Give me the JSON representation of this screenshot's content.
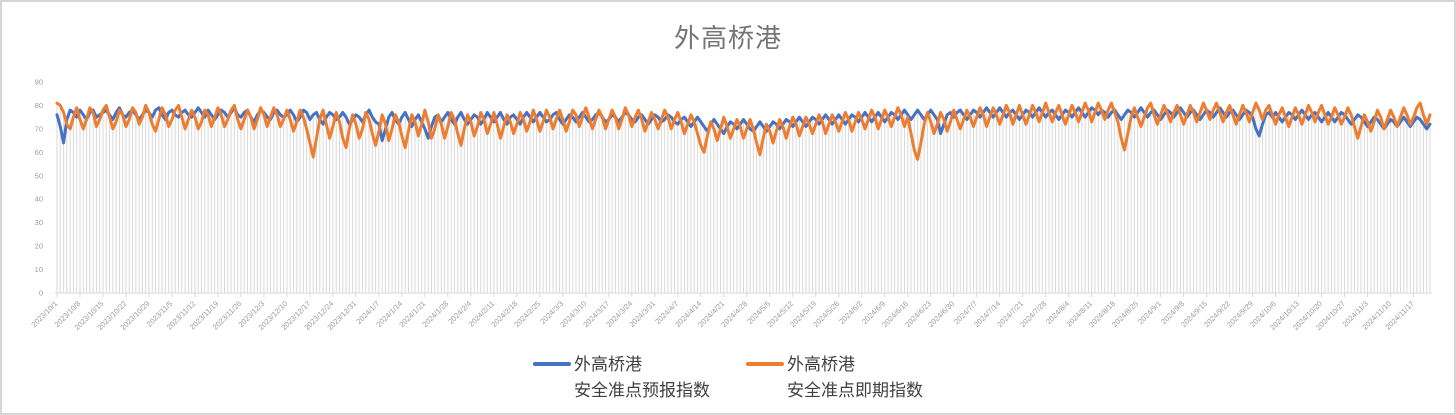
{
  "title": "外高桥港",
  "legend": {
    "items": [
      {
        "line1": "外高桥港",
        "line2": "安全准点预报指数",
        "color": "#4472C4"
      },
      {
        "line1": "外高桥港",
        "line2": "安全准点即期指数",
        "color": "#ED7D31"
      }
    ]
  },
  "colors": {
    "series_blue": "#4472C4",
    "series_orange": "#ED7D31",
    "dropline": "#D9D9D9",
    "axis_text": "#9C9C9C",
    "title_text": "#757575",
    "legend_text": "#404040",
    "card_border": "#D6D6D6",
    "background": "#FFFFFF"
  },
  "chart_data": {
    "type": "line",
    "title": "外高桥港",
    "xlabel": "",
    "ylabel": "",
    "ylim": [
      0,
      90
    ],
    "ytick_step": 10,
    "grid": "vertical-droplines-per-point",
    "legend_position": "bottom-center",
    "x_frequency": "daily",
    "x_start_date": "2023/10/1",
    "x_tick_every_n_points": 7,
    "x_tick_labels": [
      "2023/10/1",
      "2023/10/8",
      "2023/10/15",
      "2023/10/22",
      "2023/10/29",
      "2023/11/5",
      "2023/11/12",
      "2023/11/19",
      "2023/11/26",
      "2023/12/3",
      "2023/12/10",
      "2023/12/17",
      "2023/12/24",
      "2023/12/31",
      "2024/1/7",
      "2024/1/14",
      "2024/1/21",
      "2024/1/28",
      "2024/2/4",
      "2024/2/11",
      "2024/2/18",
      "2024/2/25",
      "2024/3/3",
      "2024/3/10",
      "2024/3/17",
      "2024/3/24",
      "2024/3/31",
      "2024/4/7",
      "2024/4/14",
      "2024/4/21",
      "2024/4/28",
      "2024/5/5",
      "2024/5/12",
      "2024/5/19",
      "2024/5/26",
      "2024/6/2",
      "2024/6/9",
      "2024/6/16",
      "2024/6/23",
      "2024/6/30",
      "2024/7/7",
      "2024/7/14",
      "2024/7/21",
      "2024/7/28",
      "2024/8/4",
      "2024/8/11",
      "2024/8/18",
      "2024/8/25",
      "2024/9/1",
      "2024/9/8",
      "2024/9/15",
      "2024/9/22",
      "2024/9/29",
      "2024/10/6",
      "2024/10/13",
      "2024/10/20",
      "2024/10/27",
      "2024/11/3",
      "2024/11/10",
      "2024/11/17"
    ],
    "series": [
      {
        "name": "外高桥港 安全准点预报指数",
        "color": "#4472C4",
        "values": [
          76,
          71,
          64,
          74,
          78,
          77,
          75,
          78,
          76,
          74,
          77,
          78,
          75,
          76,
          77,
          78,
          76,
          74,
          77,
          79,
          76,
          75,
          77,
          78,
          76,
          74,
          76,
          78,
          77,
          75,
          78,
          79,
          76,
          74,
          77,
          78,
          76,
          75,
          77,
          78,
          76,
          75,
          77,
          79,
          77,
          75,
          78,
          76,
          74,
          76,
          78,
          77,
          75,
          77,
          79,
          76,
          75,
          77,
          78,
          75,
          73,
          76,
          78,
          77,
          75,
          74,
          77,
          78,
          76,
          75,
          76,
          78,
          76,
          73,
          75,
          78,
          77,
          74,
          76,
          77,
          74,
          72,
          75,
          77,
          76,
          74,
          75,
          77,
          75,
          72,
          74,
          76,
          75,
          73,
          76,
          78,
          75,
          73,
          72,
          65,
          70,
          75,
          77,
          74,
          72,
          75,
          77,
          74,
          71,
          74,
          76,
          73,
          70,
          66,
          71,
          75,
          76,
          73,
          75,
          77,
          74,
          72,
          75,
          77,
          74,
          72,
          74,
          76,
          75,
          72,
          74,
          77,
          75,
          73,
          75,
          77,
          74,
          72,
          75,
          76,
          74,
          72,
          75,
          77,
          75,
          73,
          75,
          77,
          75,
          73,
          74,
          76,
          77,
          74,
          72,
          74,
          76,
          75,
          73,
          75,
          77,
          75,
          73,
          74,
          76,
          77,
          75,
          73,
          74,
          76,
          75,
          73,
          75,
          77,
          76,
          74,
          73,
          75,
          76,
          74,
          72,
          74,
          76,
          75,
          73,
          74,
          76,
          75,
          73,
          72,
          74,
          75,
          73,
          71,
          73,
          75,
          73,
          71,
          69,
          72,
          74,
          72,
          70,
          68,
          71,
          73,
          72,
          70,
          72,
          74,
          72,
          70,
          69,
          71,
          73,
          71,
          69,
          71,
          73,
          72,
          70,
          72,
          74,
          73,
          71,
          73,
          75,
          73,
          71,
          73,
          75,
          74,
          72,
          74,
          76,
          74,
          72,
          74,
          76,
          74,
          72,
          74,
          76,
          75,
          73,
          75,
          77,
          75,
          73,
          75,
          77,
          75,
          73,
          75,
          77,
          76,
          74,
          76,
          78,
          76,
          74,
          76,
          78,
          76,
          74,
          76,
          78,
          76,
          74,
          68,
          72,
          76,
          77,
          75,
          77,
          78,
          76,
          74,
          76,
          78,
          77,
          75,
          77,
          79,
          77,
          75,
          77,
          79,
          77,
          75,
          77,
          78,
          76,
          74,
          76,
          78,
          77,
          75,
          77,
          79,
          77,
          75,
          77,
          78,
          76,
          74,
          76,
          78,
          77,
          75,
          77,
          79,
          77,
          75,
          77,
          79,
          78,
          76,
          78,
          77,
          75,
          77,
          78,
          76,
          74,
          76,
          78,
          77,
          75,
          77,
          79,
          77,
          75,
          77,
          78,
          76,
          74,
          76,
          78,
          77,
          75,
          77,
          79,
          77,
          75,
          77,
          78,
          76,
          74,
          76,
          78,
          77,
          75,
          77,
          79,
          77,
          75,
          77,
          78,
          76,
          74,
          76,
          78,
          77,
          75,
          70,
          67,
          72,
          76,
          77,
          75,
          77,
          75,
          73,
          75,
          77,
          76,
          74,
          76,
          78,
          76,
          74,
          76,
          77,
          75,
          73,
          75,
          77,
          75,
          73,
          75,
          77,
          76,
          74,
          72,
          74,
          76,
          75,
          73,
          71,
          73,
          75,
          74,
          72,
          70,
          72,
          74,
          73,
          71,
          73,
          75,
          73,
          71,
          73,
          75,
          74,
          72,
          70,
          72
        ]
      },
      {
        "name": "外高桥港 安全准点即期指数",
        "color": "#ED7D31",
        "values": [
          81,
          80,
          77,
          72,
          70,
          75,
          79,
          74,
          70,
          74,
          79,
          77,
          71,
          74,
          78,
          80,
          75,
          70,
          73,
          78,
          76,
          71,
          74,
          79,
          77,
          72,
          75,
          80,
          77,
          72,
          69,
          74,
          79,
          76,
          71,
          74,
          78,
          80,
          75,
          70,
          74,
          78,
          75,
          70,
          73,
          78,
          76,
          71,
          75,
          79,
          76,
          71,
          74,
          78,
          80,
          74,
          70,
          74,
          78,
          75,
          70,
          74,
          79,
          76,
          71,
          75,
          79,
          76,
          71,
          74,
          78,
          74,
          69,
          73,
          78,
          75,
          70,
          64,
          58,
          66,
          74,
          78,
          72,
          66,
          71,
          77,
          73,
          66,
          62,
          70,
          76,
          72,
          66,
          70,
          77,
          74,
          68,
          63,
          69,
          76,
          72,
          65,
          70,
          76,
          73,
          67,
          62,
          69,
          76,
          73,
          67,
          72,
          78,
          73,
          66,
          70,
          76,
          72,
          66,
          71,
          77,
          74,
          68,
          63,
          70,
          76,
          73,
          67,
          71,
          77,
          74,
          68,
          72,
          77,
          72,
          66,
          71,
          76,
          73,
          68,
          72,
          77,
          74,
          69,
          73,
          78,
          74,
          69,
          73,
          78,
          75,
          70,
          74,
          78,
          74,
          69,
          73,
          78,
          76,
          71,
          75,
          79,
          75,
          70,
          74,
          78,
          75,
          70,
          74,
          78,
          75,
          70,
          74,
          79,
          76,
          71,
          75,
          78,
          74,
          69,
          73,
          77,
          74,
          70,
          74,
          78,
          75,
          70,
          74,
          77,
          73,
          68,
          72,
          76,
          73,
          68,
          63,
          60,
          67,
          73,
          70,
          65,
          70,
          75,
          71,
          66,
          70,
          74,
          71,
          66,
          70,
          74,
          70,
          64,
          59,
          66,
          72,
          69,
          64,
          69,
          74,
          71,
          66,
          71,
          75,
          72,
          67,
          71,
          75,
          72,
          68,
          72,
          76,
          73,
          68,
          72,
          76,
          73,
          69,
          73,
          77,
          74,
          69,
          73,
          77,
          74,
          70,
          74,
          78,
          75,
          70,
          74,
          78,
          75,
          71,
          75,
          79,
          76,
          71,
          75,
          68,
          61,
          57,
          64,
          72,
          77,
          73,
          68,
          72,
          77,
          74,
          69,
          73,
          78,
          74,
          70,
          74,
          78,
          75,
          71,
          75,
          79,
          76,
          71,
          75,
          79,
          76,
          72,
          76,
          80,
          77,
          72,
          76,
          80,
          76,
          72,
          76,
          80,
          77,
          73,
          77,
          81,
          77,
          73,
          77,
          80,
          76,
          72,
          76,
          80,
          77,
          73,
          77,
          81,
          78,
          73,
          77,
          81,
          78,
          74,
          78,
          81,
          77,
          73,
          66,
          61,
          68,
          75,
          79,
          75,
          71,
          75,
          79,
          81,
          76,
          72,
          76,
          80,
          77,
          73,
          77,
          80,
          76,
          72,
          76,
          80,
          77,
          73,
          77,
          81,
          78,
          74,
          78,
          81,
          77,
          73,
          77,
          80,
          76,
          72,
          76,
          80,
          77,
          73,
          77,
          81,
          78,
          74,
          78,
          80,
          76,
          72,
          76,
          79,
          75,
          71,
          75,
          79,
          76,
          72,
          76,
          80,
          77,
          73,
          77,
          80,
          76,
          72,
          75,
          79,
          76,
          72,
          75,
          79,
          76,
          71,
          66,
          71,
          76,
          73,
          69,
          73,
          78,
          75,
          70,
          74,
          78,
          75,
          71,
          75,
          79,
          76,
          72,
          75,
          79,
          81,
          76,
          72,
          76
        ]
      }
    ],
    "plot_style": {
      "dropline_color": "#D9D9D9",
      "axis_text_color": "#9C9C9C",
      "line_width": 3
    }
  }
}
